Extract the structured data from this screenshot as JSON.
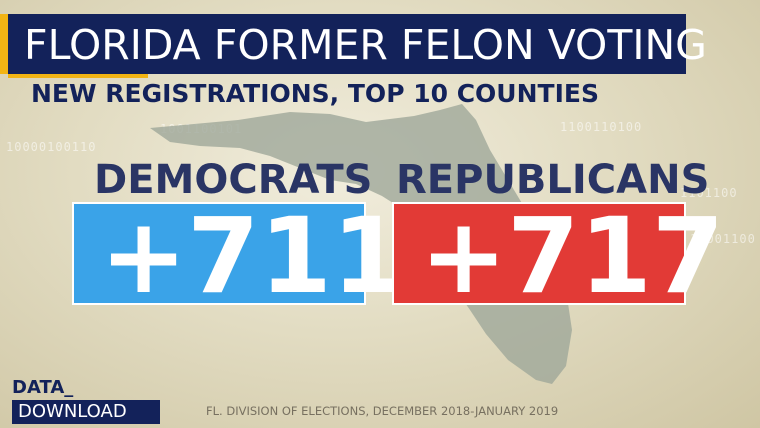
{
  "title": "FLORIDA FORMER FELON VOTING",
  "subtitle": "NEW REGISTRATIONS, TOP 10 COUNTIES",
  "democrats": {
    "label": "DEMOCRATS",
    "value": "+711",
    "color": "#3aa3e8"
  },
  "republicans": {
    "label": "REPUBLICANS",
    "value": "+717",
    "color": "#e23a36"
  },
  "brand": {
    "line1": "DATA_",
    "line2": "DOWNLOAD"
  },
  "source": "FL. DIVISION OF ELECTIONS, DECEMBER 2018-JANUARY 2019",
  "colors": {
    "navy": "#13225a",
    "accent": "#f2b414",
    "map": "#9fa79a"
  }
}
